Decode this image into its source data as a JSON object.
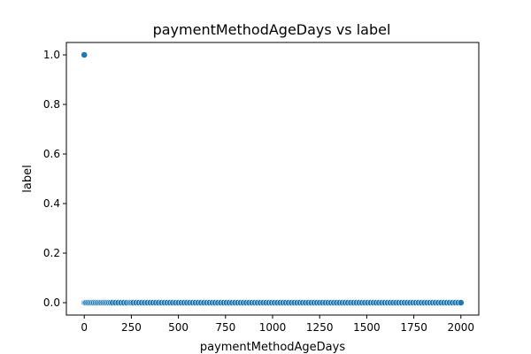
{
  "chart_data": {
    "type": "scatter",
    "title": "paymentMethodAgeDays vs label",
    "xlabel": "paymentMethodAgeDays",
    "ylabel": "label",
    "xlim": [
      -95,
      2095
    ],
    "ylim": [
      -0.05,
      1.05
    ],
    "xticks": [
      0,
      250,
      500,
      750,
      1000,
      1250,
      1500,
      1750,
      2000
    ],
    "xtick_labels": [
      "0",
      "250",
      "500",
      "750",
      "1000",
      "1250",
      "1500",
      "1750",
      "2000"
    ],
    "yticks": [
      0.0,
      0.2,
      0.4,
      0.6,
      0.8,
      1.0
    ],
    "ytick_labels": [
      "0.0",
      "0.2",
      "0.4",
      "0.6",
      "0.8",
      "1.0"
    ],
    "grid": false,
    "marker_color": "#1f77b4",
    "series": [
      {
        "x": [
          0,
          0,
          5,
          10,
          20,
          30,
          40,
          50,
          60,
          70,
          80,
          90,
          100,
          110,
          120,
          130,
          140,
          150,
          165,
          180,
          195,
          210,
          225,
          240,
          250,
          260,
          275,
          290,
          305,
          320,
          335,
          350,
          365,
          380,
          395,
          410,
          425,
          440,
          455,
          470,
          485,
          500,
          515,
          530,
          545,
          560,
          575,
          590,
          605,
          620,
          635,
          650,
          665,
          680,
          695,
          710,
          725,
          740,
          755,
          770,
          785,
          800,
          815,
          830,
          845,
          860,
          875,
          890,
          905,
          920,
          935,
          950,
          965,
          980,
          995,
          1010,
          1025,
          1040,
          1055,
          1070,
          1085,
          1100,
          1115,
          1130,
          1145,
          1160,
          1175,
          1190,
          1205,
          1220,
          1235,
          1250,
          1265,
          1280,
          1295,
          1310,
          1325,
          1340,
          1355,
          1370,
          1385,
          1400,
          1415,
          1430,
          1445,
          1460,
          1475,
          1490,
          1505,
          1520,
          1535,
          1550,
          1565,
          1580,
          1595,
          1610,
          1625,
          1640,
          1655,
          1670,
          1685,
          1700,
          1715,
          1730,
          1745,
          1760,
          1775,
          1790,
          1805,
          1820,
          1835,
          1850,
          1865,
          1880,
          1895,
          1910,
          1925,
          1940,
          1955,
          1970,
          1985,
          2000
        ],
        "y": [
          1,
          0,
          0,
          0,
          0,
          0,
          0,
          0,
          0,
          0,
          0,
          0,
          0,
          0,
          0,
          0,
          0,
          0,
          0,
          0,
          0,
          0,
          0,
          0,
          0,
          0,
          0,
          0,
          0,
          0,
          0,
          0,
          0,
          0,
          0,
          0,
          0,
          0,
          0,
          0,
          0,
          0,
          0,
          0,
          0,
          0,
          0,
          0,
          0,
          0,
          0,
          0,
          0,
          0,
          0,
          0,
          0,
          0,
          0,
          0,
          0,
          0,
          0,
          0,
          0,
          0,
          0,
          0,
          0,
          0,
          0,
          0,
          0,
          0,
          0,
          0,
          0,
          0,
          0,
          0,
          0,
          0,
          0,
          0,
          0,
          0,
          0,
          0,
          0,
          0,
          0,
          0,
          0,
          0,
          0,
          0,
          0,
          0,
          0,
          0,
          0,
          0,
          0,
          0,
          0,
          0,
          0,
          0,
          0,
          0,
          0,
          0,
          0,
          0,
          0,
          0,
          0,
          0,
          0,
          0,
          0,
          0,
          0,
          0,
          0,
          0,
          0,
          0,
          0,
          0,
          0,
          0,
          0,
          0,
          0,
          0,
          0,
          0,
          0,
          0,
          0,
          0
        ]
      }
    ]
  }
}
